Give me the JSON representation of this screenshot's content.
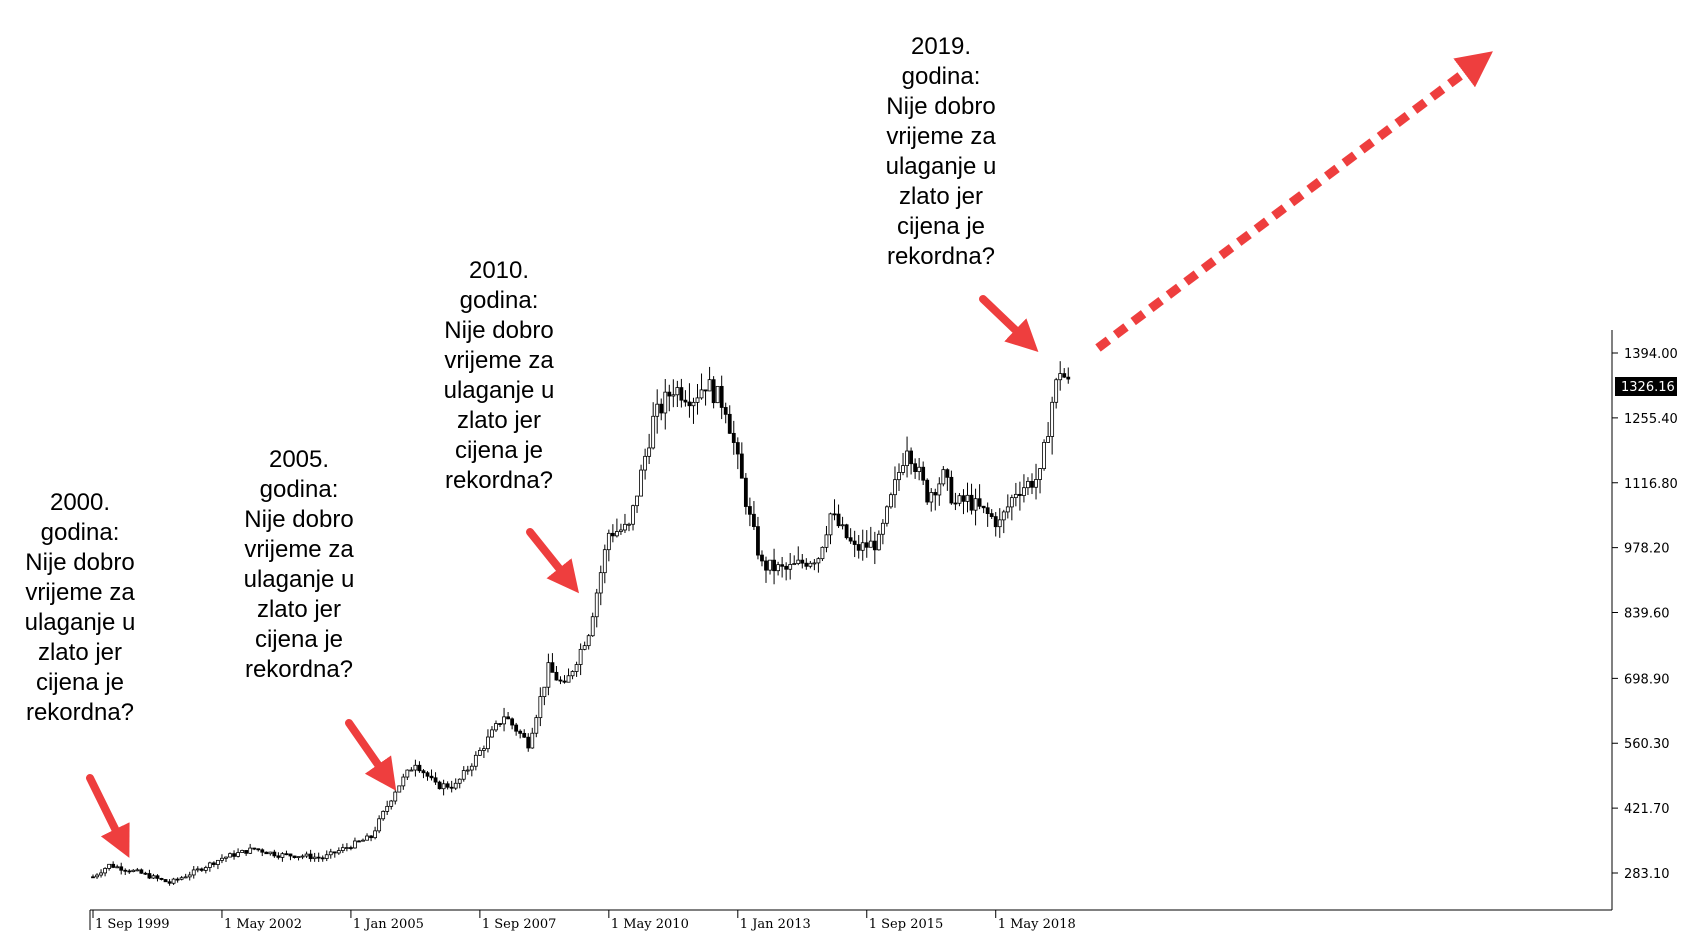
{
  "chart_data": {
    "type": "candlestick",
    "y_ticks": [
      "1394.00",
      "1255.40",
      "1116.80",
      "978.20",
      "839.60",
      "698.90",
      "560.30",
      "421.70",
      "283.10"
    ],
    "y_tick_values": [
      1394.0,
      1255.4,
      1116.8,
      978.2,
      839.6,
      698.9,
      560.3,
      421.7,
      283.1
    ],
    "x_ticks": [
      "1 Sep 1999",
      "1 May 2002",
      "1 Jan 2005",
      "1 Sep 2007",
      "1 May 2010",
      "1 Jan 2013",
      "1 Sep 2015",
      "1 May 2018"
    ],
    "current_price": "1326.16",
    "price_path": [
      [
        "1999-09",
        275
      ],
      [
        "2000-01",
        300
      ],
      [
        "2000-08",
        285
      ],
      [
        "2001-04",
        262
      ],
      [
        "2001-10",
        285
      ],
      [
        "2002-05",
        315
      ],
      [
        "2003-01",
        335
      ],
      [
        "2003-07",
        322
      ],
      [
        "2004-01",
        320
      ],
      [
        "2004-06",
        315
      ],
      [
        "2005-01",
        342
      ],
      [
        "2005-06",
        360
      ],
      [
        "2005-12",
        460
      ],
      [
        "2006-05",
        520
      ],
      [
        "2006-10",
        470
      ],
      [
        "2007-03",
        470
      ],
      [
        "2007-08",
        530
      ],
      [
        "2008-03",
        620
      ],
      [
        "2008-09",
        560
      ],
      [
        "2009-02",
        720
      ],
      [
        "2009-06",
        680
      ],
      [
        "2009-12",
        800
      ],
      [
        "2010-05",
        1010
      ],
      [
        "2010-10",
        1020
      ],
      [
        "2011-04",
        1250
      ],
      [
        "2011-09",
        1320
      ],
      [
        "2012-02",
        1300
      ],
      [
        "2012-05",
        1330
      ],
      [
        "2012-10",
        1280
      ],
      [
        "2013-04",
        1040
      ],
      [
        "2013-07",
        940
      ],
      [
        "2014-01",
        930
      ],
      [
        "2014-06",
        950
      ],
      [
        "2014-09",
        960
      ],
      [
        "2014-12",
        1050
      ],
      [
        "2015-06",
        975
      ],
      [
        "2015-12",
        990
      ],
      [
        "2016-07",
        1200
      ],
      [
        "2016-12",
        1090
      ],
      [
        "2017-04",
        1130
      ],
      [
        "2017-07",
        1070
      ],
      [
        "2017-10",
        1080
      ],
      [
        "2018-01",
        1060
      ],
      [
        "2018-06",
        1030
      ],
      [
        "2018-10",
        1100
      ],
      [
        "2019-04",
        1130
      ],
      [
        "2019-07",
        1290
      ],
      [
        "2019-09",
        1360
      ],
      [
        "2019-11",
        1326
      ]
    ]
  },
  "annotations": [
    {
      "text": "2000.\ngodina:\nNije dobro\nvrijeme za\nulaganje u\nzlato jer\ncijena je\nrekordna?"
    },
    {
      "text": "2005.\ngodina:\nNije dobro\nvrijeme za\nulaganje u\nzlato jer\ncijena je\nrekordna?"
    },
    {
      "text": "2010.\ngodina:\nNije dobro\nvrijeme za\nulaganje u\nzlato jer\ncijena je\nrekordna?"
    },
    {
      "text": "2019.\ngodina:\nNije dobro\nvrijeme za\nulaganje u\nzlato jer\ncijena je\nrekordna?"
    }
  ],
  "colors": {
    "arrow": "#ee3e3e",
    "candle": "#000000",
    "axis": "#000000",
    "price_tag_bg": "#000000"
  }
}
